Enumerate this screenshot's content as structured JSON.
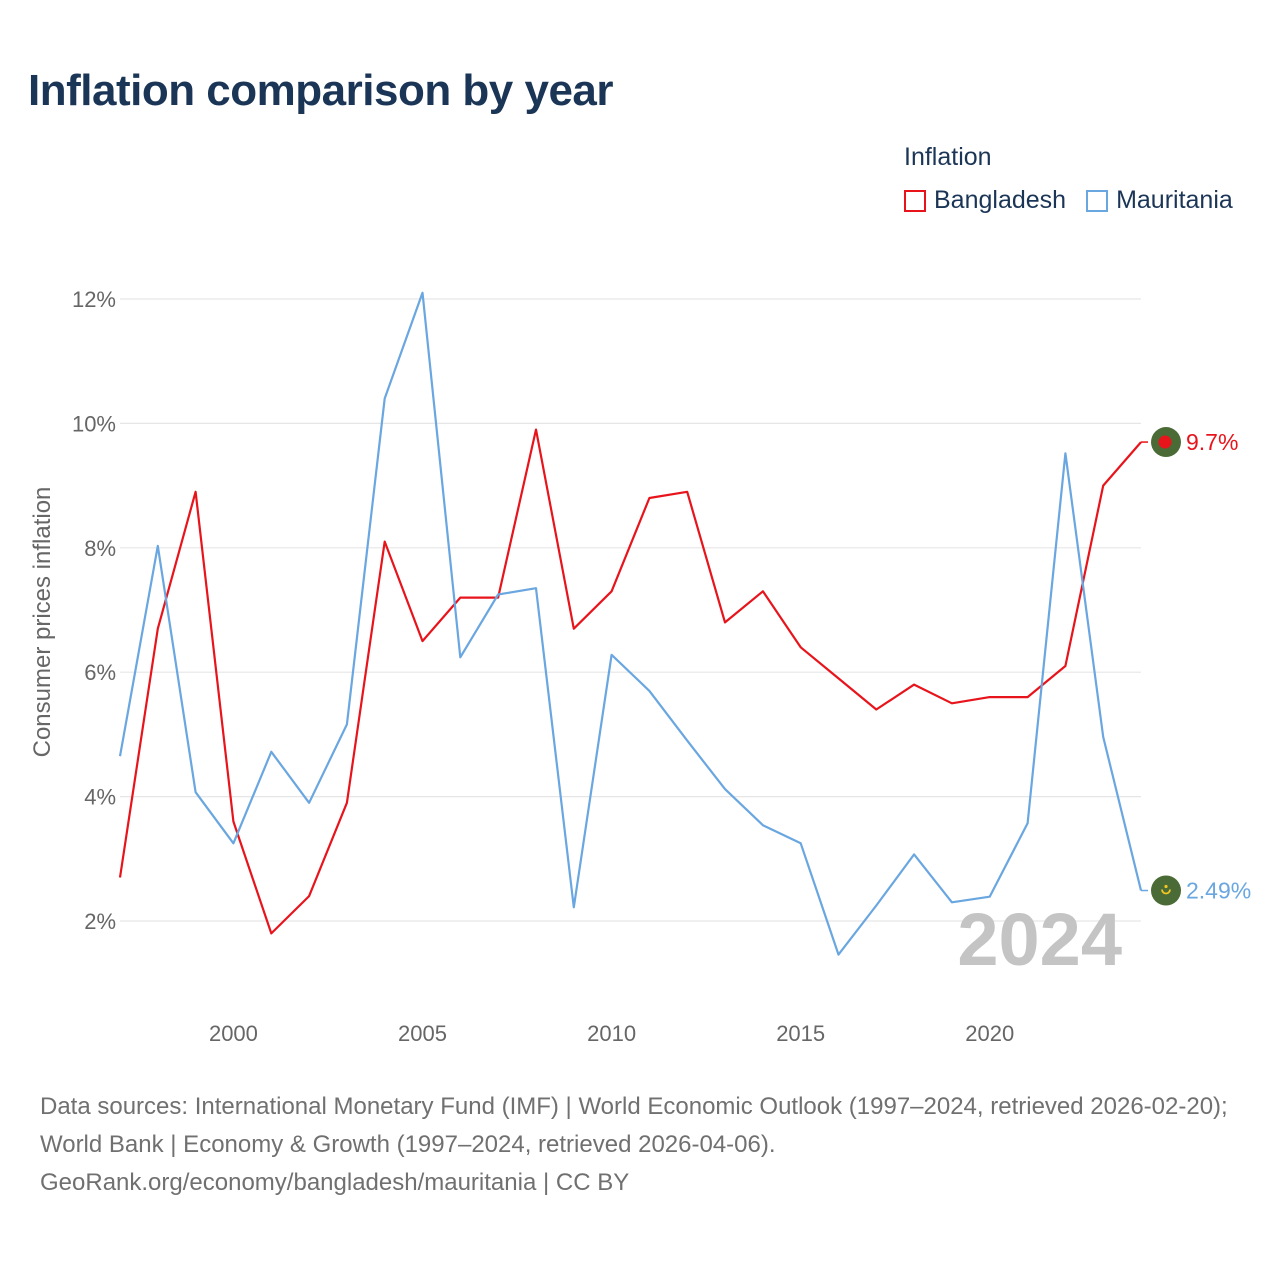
{
  "title": "Inflation comparison by year",
  "legend": {
    "title": "Inflation",
    "items": [
      {
        "label": "Bangladesh",
        "color": "#e8141c"
      },
      {
        "label": "Mauritania",
        "color": "#6aa6e0"
      }
    ]
  },
  "chart_data": {
    "type": "line",
    "title": "Inflation comparison by year",
    "xlabel": "",
    "ylabel": "Consumer prices inflation",
    "xlim": [
      1997,
      2024
    ],
    "ylim": [
      1,
      12.5
    ],
    "yticks": [
      2,
      4,
      6,
      8,
      10,
      12
    ],
    "ytick_labels": [
      "2%",
      "4%",
      "6%",
      "8%",
      "10%",
      "12%"
    ],
    "xticks": [
      2000,
      2005,
      2010,
      2015,
      2020
    ],
    "xtick_labels": [
      "2000",
      "2005",
      "2010",
      "2015",
      "2020"
    ],
    "grid": true,
    "legend_position": "top-right",
    "x": [
      1997,
      1998,
      1999,
      2000,
      2001,
      2002,
      2003,
      2004,
      2005,
      2006,
      2007,
      2008,
      2009,
      2010,
      2011,
      2012,
      2013,
      2014,
      2015,
      2016,
      2017,
      2018,
      2019,
      2020,
      2021,
      2022,
      2023,
      2024
    ],
    "series": [
      {
        "name": "Bangladesh",
        "color": "#e8141c",
        "values": [
          2.7,
          6.7,
          8.9,
          3.6,
          1.8,
          2.4,
          3.9,
          8.1,
          6.5,
          7.2,
          7.2,
          9.9,
          6.7,
          7.3,
          8.8,
          8.9,
          6.8,
          7.3,
          6.4,
          5.9,
          5.4,
          5.8,
          5.5,
          5.6,
          5.6,
          6.1,
          9.0,
          9.7
        ],
        "end_label": "9.7%"
      },
      {
        "name": "Mauritania",
        "color": "#6aa6e0",
        "values": [
          4.65,
          8.03,
          4.07,
          3.25,
          4.72,
          3.9,
          5.16,
          10.4,
          12.1,
          6.24,
          7.25,
          7.35,
          2.22,
          6.28,
          5.7,
          4.9,
          4.12,
          3.54,
          3.25,
          1.46,
          2.25,
          3.07,
          2.3,
          2.39,
          3.57,
          9.52,
          4.96,
          2.49
        ],
        "end_label": "2.49%"
      }
    ],
    "annotations": [
      {
        "text": "2024",
        "role": "current-year-watermark"
      }
    ]
  },
  "sources": {
    "text": "Data sources: International Monetary Fund (IMF) | World Economic Outlook (1997–2024, retrieved 2026-02-20); World Bank | Economy & Growth (1997–2024, retrieved 2026-04-06).",
    "credit": "GeoRank.org/economy/bangladesh/mauritania | CC BY"
  }
}
